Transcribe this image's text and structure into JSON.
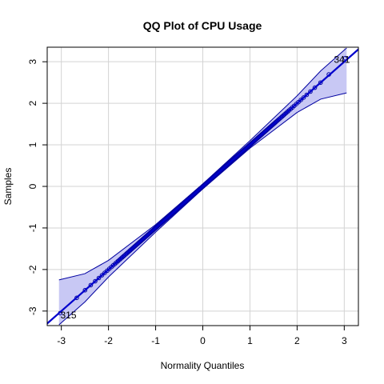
{
  "chart_data": {
    "type": "scatter",
    "title": "QQ Plot of CPU Usage",
    "xlabel": "Normality Quantiles",
    "ylabel": "Samples",
    "xlim": [
      -3.3,
      3.3
    ],
    "ylim": [
      -3.35,
      3.35
    ],
    "xticks": [
      "-3",
      "-2",
      "-1",
      "0",
      "1",
      "2",
      "3"
    ],
    "yticks": [
      "-3",
      "-2",
      "-1",
      "0",
      "1",
      "2",
      "3"
    ],
    "grid": true,
    "n_points": 400,
    "reference_line": {
      "intercept": 0,
      "slope": 1
    },
    "confidence_band_at_x": [
      [
        -3.05,
        -3.33,
        -2.25
      ],
      [
        -2.5,
        -2.78,
        -2.1
      ],
      [
        -2.0,
        -2.18,
        -1.78
      ],
      [
        -1.0,
        -1.1,
        -0.92
      ],
      [
        0.0,
        -0.06,
        0.06
      ],
      [
        1.0,
        0.92,
        1.1
      ],
      [
        2.0,
        1.78,
        2.18
      ],
      [
        2.5,
        2.1,
        2.78
      ],
      [
        3.05,
        2.25,
        3.33
      ]
    ],
    "annotations": [
      {
        "label": "341",
        "x": 2.78,
        "y": 3.05
      },
      {
        "label": "315",
        "x": -3.02,
        "y": -3.1
      }
    ],
    "colors": {
      "points": "#0000a0",
      "line": "#0000cc",
      "band_fill": "#c8c8f4",
      "band_edge": "#0000a0",
      "grid": "#d3d3d3"
    }
  }
}
